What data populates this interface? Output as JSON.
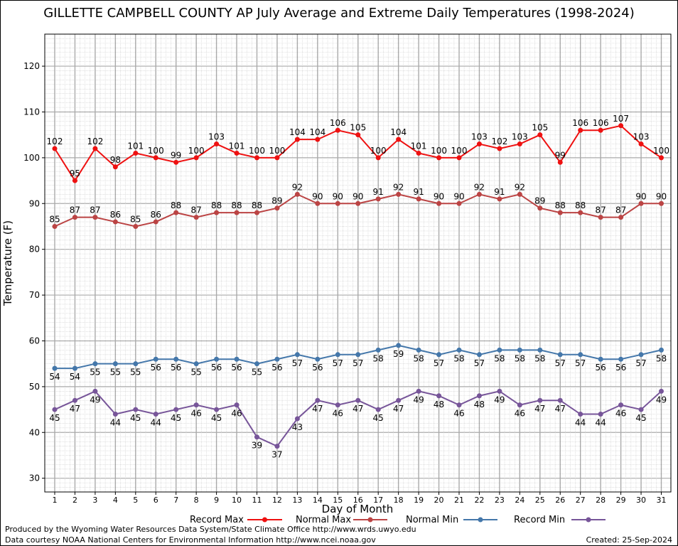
{
  "chart_data": {
    "type": "line",
    "title": "GILLETTE CAMPBELL COUNTY AP July Average and Extreme Daily Temperatures (1998-2024)",
    "xlabel": "Day of Month",
    "ylabel": "Temperature (F)",
    "ylim": [
      27,
      127
    ],
    "yticks": [
      30,
      40,
      50,
      60,
      70,
      80,
      90,
      100,
      110,
      120
    ],
    "grid": true,
    "legend_position": "bottom",
    "x": [
      1,
      2,
      3,
      4,
      5,
      6,
      7,
      8,
      9,
      10,
      11,
      12,
      13,
      14,
      15,
      16,
      17,
      18,
      19,
      20,
      21,
      22,
      23,
      24,
      25,
      26,
      27,
      28,
      29,
      30,
      31
    ],
    "series": [
      {
        "name": "Record Max",
        "color": "#ee1111",
        "label_pos": "above",
        "values": [
          102,
          95,
          102,
          98,
          101,
          100,
          99,
          100,
          103,
          101,
          100,
          100,
          104,
          104,
          106,
          105,
          100,
          104,
          101,
          100,
          100,
          103,
          102,
          103,
          105,
          99,
          106,
          106,
          107,
          103,
          100
        ]
      },
      {
        "name": "Normal Max",
        "color": "#bb4444",
        "label_pos": "above",
        "values": [
          85,
          87,
          87,
          86,
          85,
          86,
          88,
          87,
          88,
          88,
          88,
          89,
          92,
          90,
          90,
          90,
          91,
          92,
          91,
          90,
          90,
          92,
          91,
          92,
          89,
          88,
          88,
          87,
          87,
          90,
          90
        ]
      },
      {
        "name": "Normal Min",
        "color": "#4477aa",
        "label_pos": "below",
        "values": [
          54,
          54,
          55,
          55,
          55,
          56,
          56,
          55,
          56,
          56,
          55,
          56,
          57,
          56,
          57,
          57,
          58,
          59,
          58,
          57,
          58,
          57,
          58,
          58,
          58,
          57,
          57,
          56,
          56,
          57,
          58
        ]
      },
      {
        "name": "Record Min",
        "color": "#775599",
        "label_pos": "below",
        "values": [
          45,
          47,
          49,
          44,
          45,
          44,
          45,
          46,
          45,
          46,
          39,
          37,
          43,
          47,
          46,
          47,
          45,
          47,
          49,
          48,
          46,
          48,
          49,
          46,
          47,
          47,
          44,
          44,
          46,
          45,
          49
        ]
      }
    ]
  },
  "footer": {
    "produced_by": "Produced by the Wyoming Water Resources Data System/State Climate Office http://www.wrds.uwyo.edu",
    "courtesy": "Data courtesy NOAA National Centers for Environmental Information http://www.ncei.noaa.gov",
    "created": "Created:  25-Sep-2024"
  }
}
